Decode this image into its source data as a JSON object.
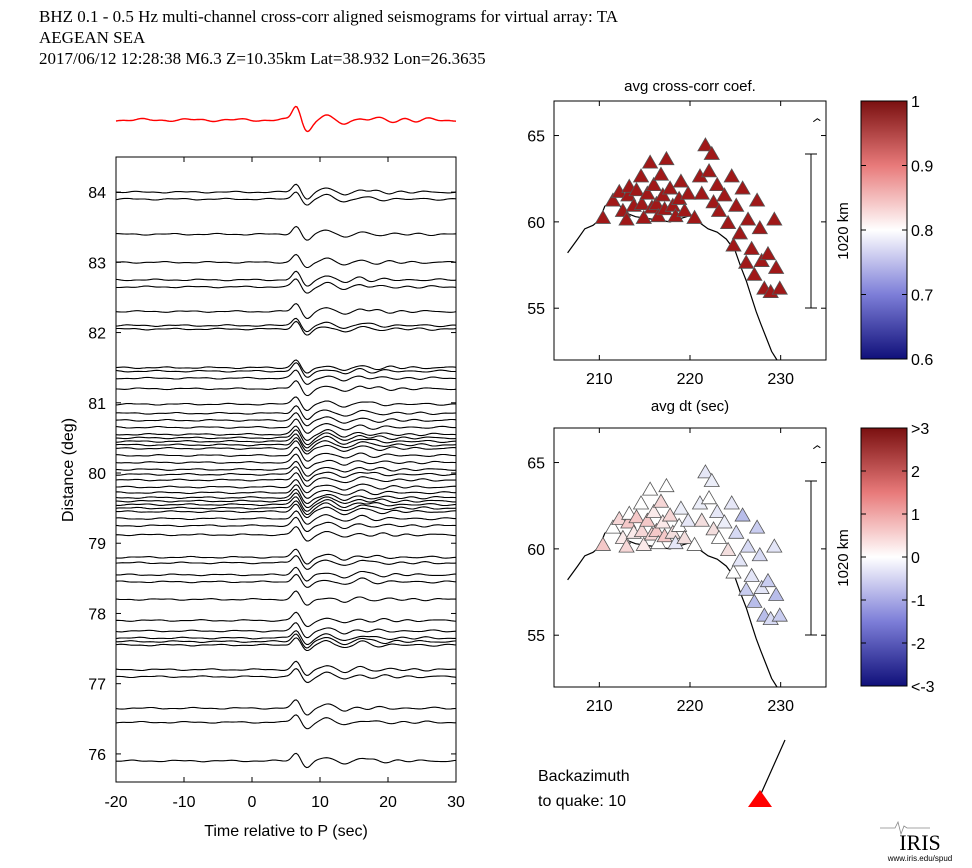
{
  "header": {
    "line1": "BHZ  0.1 - 0.5 Hz  multi-channel cross-corr aligned seismograms for virtual array: TA",
    "line2": "AEGEAN SEA",
    "line3": "2017/06/12  12:28:38  M6.3  Z=10.35km Lat=38.932 Lon=26.3635"
  },
  "colors": {
    "stack_trace": "#ff0000",
    "traces": "#000000",
    "quake_marker": "#ff0000"
  },
  "chart_data": [
    {
      "type": "line",
      "name": "record-section",
      "xlabel": "Time relative to P (sec)",
      "ylabel": "Distance (deg)",
      "xlim": [
        -20,
        30
      ],
      "ylim": [
        75.6,
        84.5
      ],
      "xticks": [
        -20,
        -10,
        0,
        10,
        20,
        30
      ],
      "yticks": [
        76,
        77,
        78,
        79,
        80,
        81,
        82,
        83,
        84
      ],
      "trace_distances": [
        84.0,
        83.9,
        83.4,
        83.0,
        82.75,
        82.65,
        82.3,
        82.1,
        82.05,
        81.5,
        81.45,
        81.35,
        81.2,
        80.98,
        80.85,
        80.75,
        80.65,
        80.55,
        80.5,
        80.45,
        80.4,
        80.35,
        80.25,
        80.15,
        80.05,
        79.98,
        79.9,
        79.8,
        79.72,
        79.65,
        79.6,
        79.55,
        79.5,
        79.45,
        79.35,
        79.25,
        79.12,
        78.8,
        78.72,
        78.55,
        78.45,
        78.2,
        77.9,
        77.75,
        77.65,
        77.6,
        77.55,
        77.2,
        77.1,
        76.65,
        76.45,
        75.9
      ]
    },
    {
      "type": "scatter",
      "name": "avg-cross-corr-map",
      "title": "avg cross-corr coef.",
      "xlim": [
        205,
        235
      ],
      "ylim": [
        52,
        67
      ],
      "xticks": [
        210,
        220,
        230
      ],
      "yticks": [
        55,
        60,
        65
      ],
      "scale_label": "1020 km",
      "colorbar": {
        "min": 0.6,
        "max": 1,
        "ticks": [
          "1",
          "0.9",
          "0.8",
          "0.7",
          "0.6"
        ]
      },
      "stations": [
        [
          210.4,
          60.2
        ],
        [
          211.5,
          61.2
        ],
        [
          212.2,
          61.7
        ],
        [
          212.6,
          60.6
        ],
        [
          213.2,
          61.5
        ],
        [
          213.3,
          62.0
        ],
        [
          213.0,
          60.1
        ],
        [
          213.8,
          60.9
        ],
        [
          214.1,
          61.8
        ],
        [
          214.6,
          62.6
        ],
        [
          214.7,
          61.0
        ],
        [
          214.9,
          60.2
        ],
        [
          215.3,
          61.6
        ],
        [
          215.6,
          63.4
        ],
        [
          215.8,
          60.8
        ],
        [
          216.0,
          62.1
        ],
        [
          216.3,
          61.0
        ],
        [
          216.5,
          60.3
        ],
        [
          216.8,
          62.7
        ],
        [
          217.0,
          61.5
        ],
        [
          217.2,
          60.7
        ],
        [
          217.4,
          63.6
        ],
        [
          217.8,
          61.9
        ],
        [
          218.1,
          60.9
        ],
        [
          218.4,
          60.3
        ],
        [
          218.8,
          61.3
        ],
        [
          219.0,
          62.3
        ],
        [
          219.4,
          60.6
        ],
        [
          219.8,
          61.6
        ],
        [
          220.5,
          60.2
        ],
        [
          221.1,
          62.6
        ],
        [
          221.3,
          61.6
        ],
        [
          221.7,
          64.4
        ],
        [
          222.1,
          62.9
        ],
        [
          222.4,
          63.9
        ],
        [
          222.6,
          61.1
        ],
        [
          223.0,
          62.1
        ],
        [
          223.2,
          60.6
        ],
        [
          223.8,
          61.5
        ],
        [
          224.2,
          59.9
        ],
        [
          224.6,
          62.6
        ],
        [
          224.8,
          58.6
        ],
        [
          225.1,
          60.9
        ],
        [
          225.5,
          59.3
        ],
        [
          225.8,
          61.9
        ],
        [
          226.2,
          57.6
        ],
        [
          226.4,
          60.1
        ],
        [
          226.8,
          58.4
        ],
        [
          227.1,
          56.9
        ],
        [
          227.4,
          61.2
        ],
        [
          227.7,
          59.6
        ],
        [
          227.9,
          57.7
        ],
        [
          228.2,
          56.1
        ],
        [
          228.6,
          58.1
        ],
        [
          228.9,
          55.9
        ],
        [
          229.3,
          60.1
        ],
        [
          229.5,
          57.3
        ],
        [
          229.9,
          56.1
        ]
      ]
    },
    {
      "type": "scatter",
      "name": "avg-dt-map",
      "title": "avg dt (sec)",
      "xlim": [
        205,
        235
      ],
      "ylim": [
        52,
        67
      ],
      "xticks": [
        210,
        220,
        230
      ],
      "yticks": [
        55,
        60,
        65
      ],
      "scale_label": "1020 km",
      "colorbar": {
        "min": -3,
        "max": 3,
        "ticks": [
          ">3",
          "2",
          "1",
          "0",
          "-1",
          "-2",
          "<-3"
        ]
      }
    }
  ],
  "backazimuth": {
    "label_line1": "Backazimuth",
    "label_line2": "to quake:  10"
  },
  "logo": {
    "text": "IRIS",
    "url_text": "www.iris.edu/spud"
  }
}
